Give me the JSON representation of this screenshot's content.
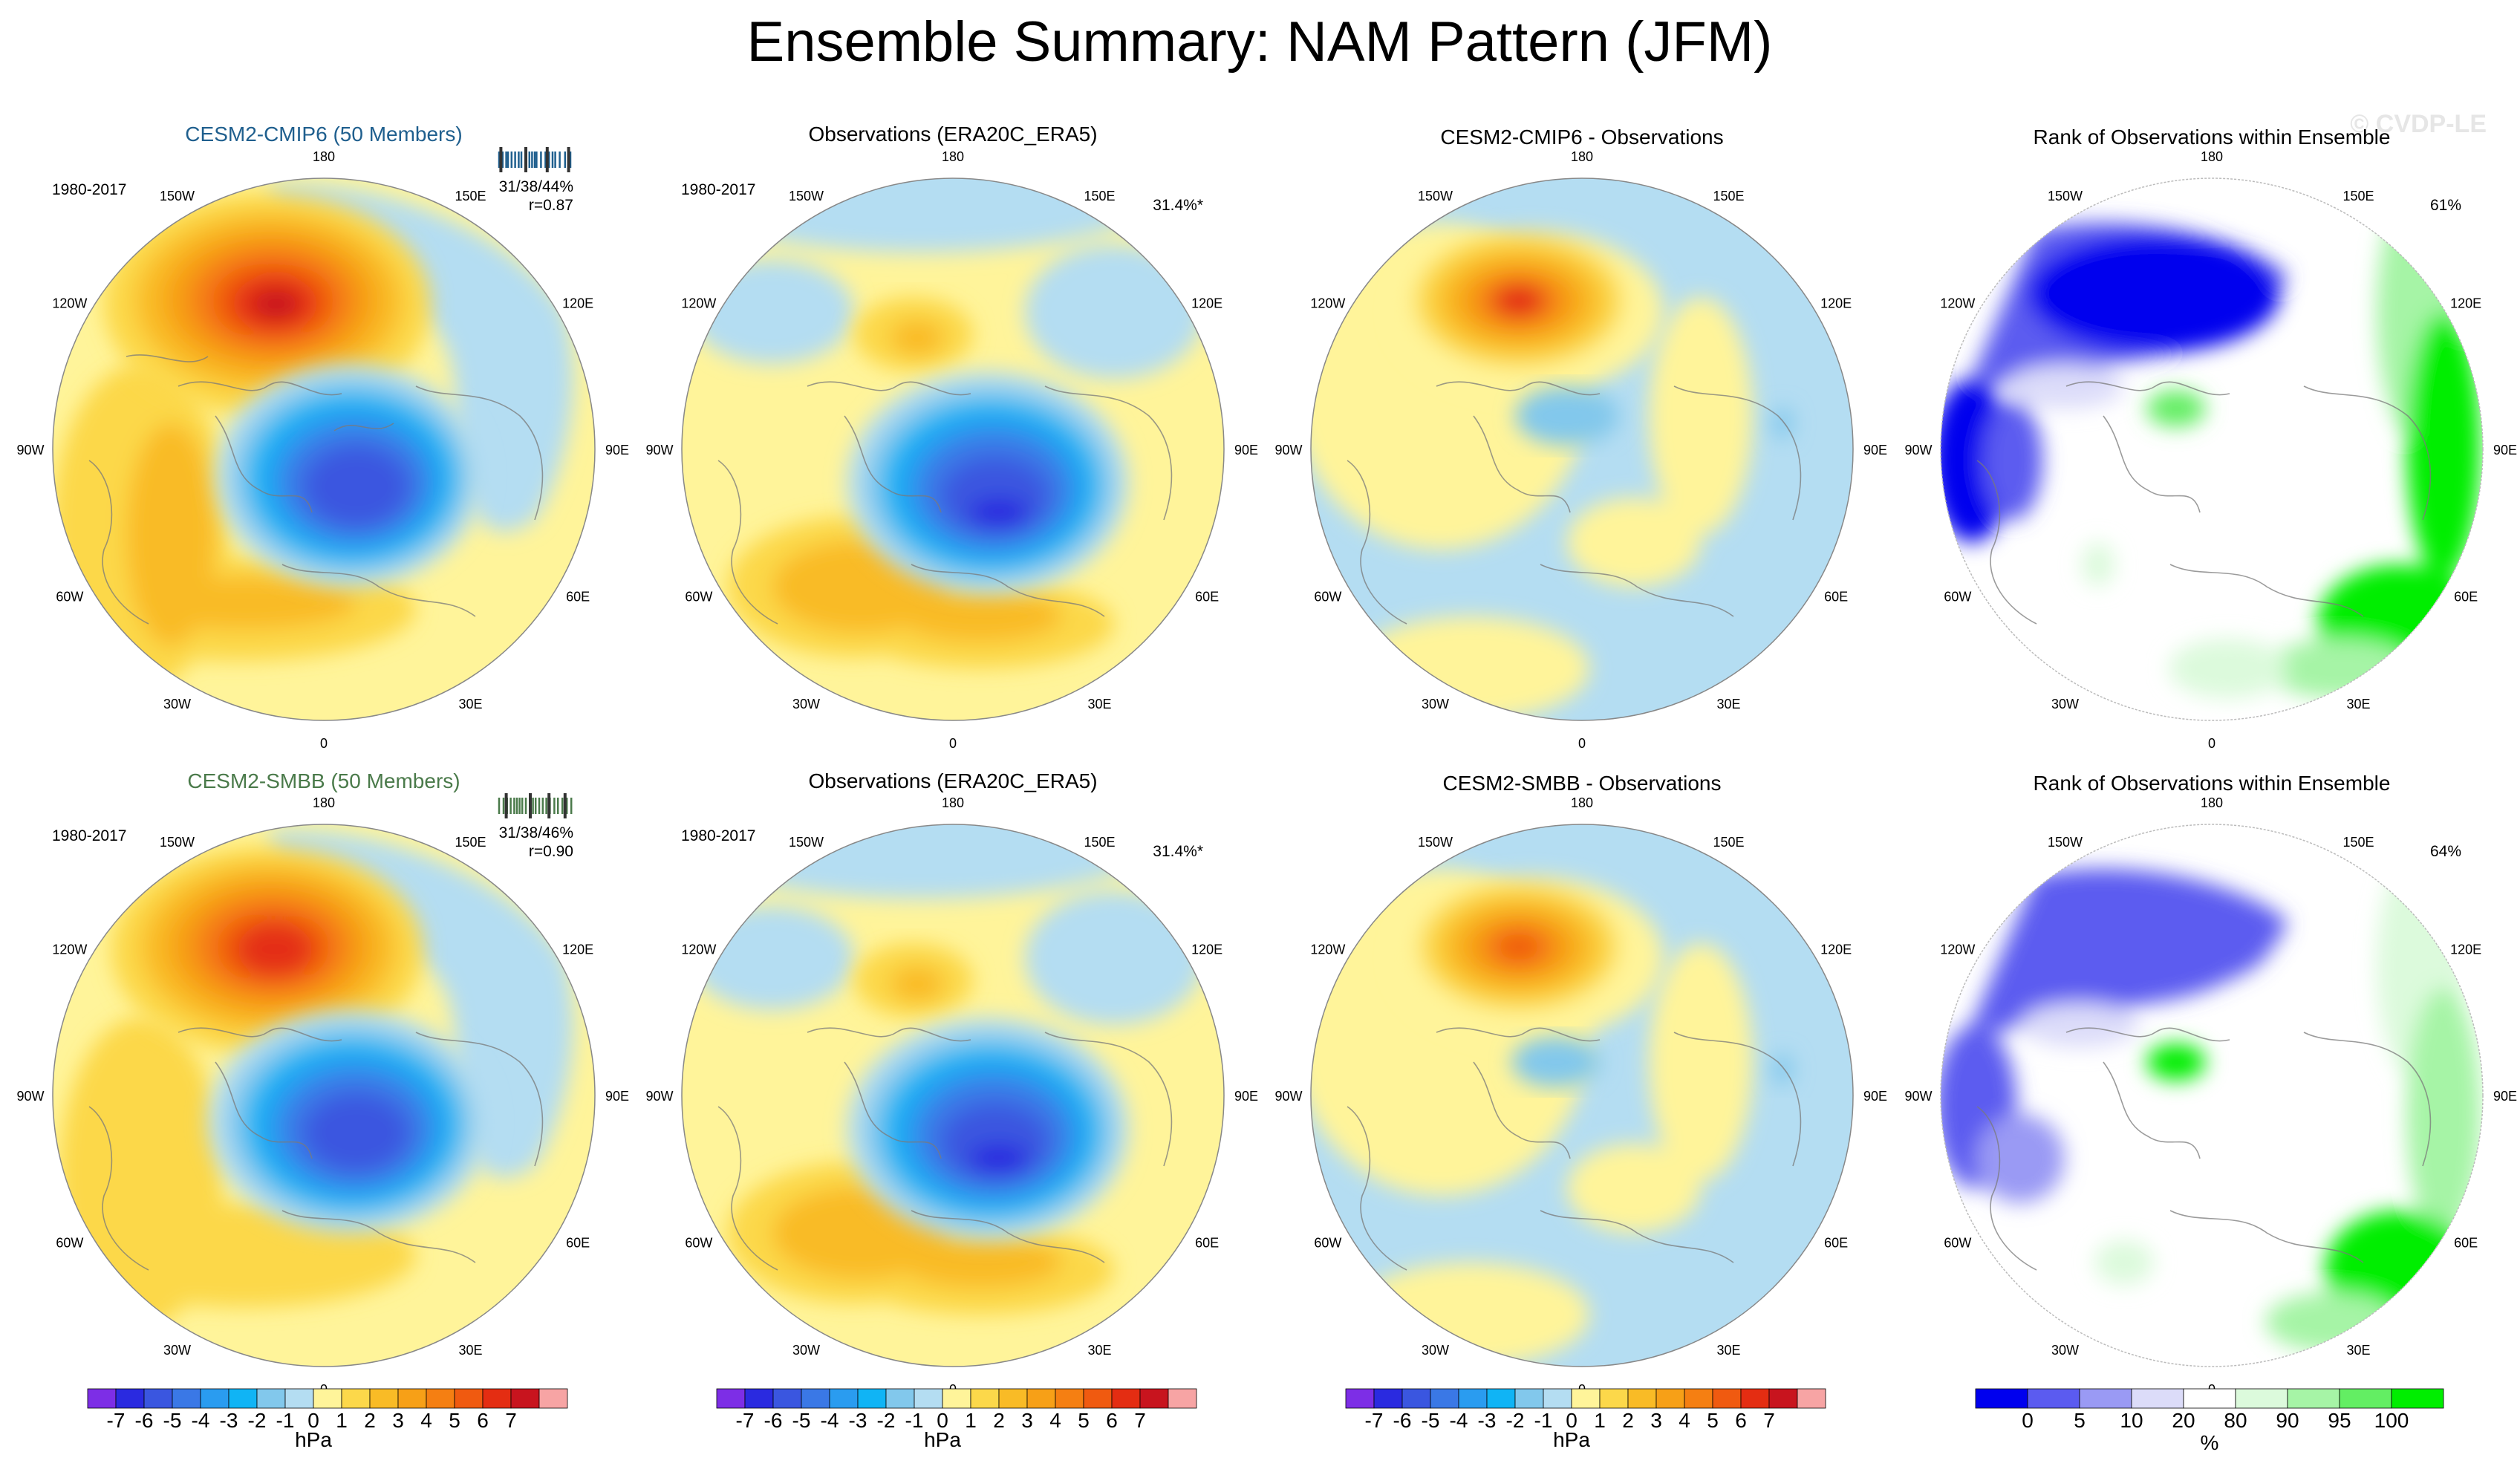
{
  "figure": {
    "title": "Ensemble Summary: NAM Pattern (JFM)",
    "watermark": "© CVDP-LE"
  },
  "colors": {
    "neg": [
      "#7d2ee6",
      "#2a2ae0",
      "#3a56e0",
      "#3a78e6",
      "#2a9cf0",
      "#10b4f5",
      "#82c8ec",
      "#b4ddf2"
    ],
    "pos": [
      "#fff49a",
      "#fcd84a",
      "#f9bb26",
      "#f7a017",
      "#f57f12",
      "#f05a10",
      "#e42d12",
      "#c8141e",
      "#f7a4a4"
    ],
    "rank": [
      "#0000ee",
      "#5b5bf0",
      "#9a9af4",
      "#dcdcf9",
      "#ffffff",
      "#dcfadc",
      "#a6f4a6",
      "#63ee63",
      "#00ee00"
    ],
    "cmip6": "#1f5f8e",
    "smbb": "#4a7a4a"
  },
  "chart_data": [
    {
      "type": "heatmap",
      "panel": "cmip6_ens",
      "title": "CESM2-CMIP6 (50 Members)",
      "period": "1980-2017",
      "stats": [
        "31/38/44%",
        "r=0.87"
      ],
      "rank_ticks": [
        0.1,
        0.14,
        0.18,
        0.2,
        0.24,
        0.28,
        0.32,
        0.35,
        0.4,
        0.44,
        0.47,
        0.5,
        0.52,
        0.57,
        0.62,
        0.66,
        0.7,
        0.73,
        0.78,
        0.84,
        0.9
      ],
      "rank_highlight": [
        0.12,
        0.4,
        0.64,
        0.88
      ]
    },
    {
      "type": "heatmap",
      "panel": "obs_1",
      "title": "Observations (ERA20C_ERA5)",
      "period": "1980-2017",
      "stats": [
        "31.4%*"
      ]
    },
    {
      "type": "heatmap",
      "panel": "diff_cmip6",
      "title": "CESM2-CMIP6 - Observations"
    },
    {
      "type": "heatmap",
      "panel": "rank_cmip6",
      "title": "Rank of Observations within Ensemble",
      "stats": [
        "61%"
      ]
    },
    {
      "type": "heatmap",
      "panel": "smbb_ens",
      "title": "CESM2-SMBB (50 Members)",
      "period": "1980-2017",
      "stats": [
        "31/38/46%",
        "r=0.90"
      ],
      "rank_ticks": [
        0.1,
        0.15,
        0.19,
        0.23,
        0.27,
        0.3,
        0.33,
        0.36,
        0.4,
        0.45,
        0.48,
        0.51,
        0.55,
        0.59,
        0.63,
        0.67,
        0.72,
        0.76,
        0.81,
        0.86,
        0.91
      ],
      "rank_highlight": [
        0.18,
        0.45,
        0.66,
        0.84
      ]
    },
    {
      "type": "heatmap",
      "panel": "obs_2",
      "title": "Observations (ERA20C_ERA5)",
      "period": "1980-2017",
      "stats": [
        "31.4%*"
      ]
    },
    {
      "type": "heatmap",
      "panel": "diff_smbb",
      "title": "CESM2-SMBB - Observations"
    },
    {
      "type": "heatmap",
      "panel": "rank_smbb",
      "title": "Rank of Observations within Ensemble",
      "stats": [
        "64%"
      ]
    }
  ],
  "map_labels": {
    "north": "180",
    "south": "0",
    "west": "90W",
    "east": "90E",
    "nw1": "150W",
    "nw2": "120W",
    "sw1": "60W",
    "sw2": "30W",
    "ne1": "150E",
    "ne2": "120E",
    "se1": "60E",
    "se2": "30E"
  },
  "colorbars": {
    "hpa": {
      "labels": [
        "-7",
        "-6",
        "-5",
        "-4",
        "-3",
        "-2",
        "-1",
        "0",
        "1",
        "2",
        "3",
        "4",
        "5",
        "6",
        "7"
      ],
      "unit": "hPa"
    },
    "rank": {
      "labels": [
        "0",
        "5",
        "10",
        "20",
        "80",
        "90",
        "95",
        "100"
      ],
      "unit": "%"
    }
  }
}
